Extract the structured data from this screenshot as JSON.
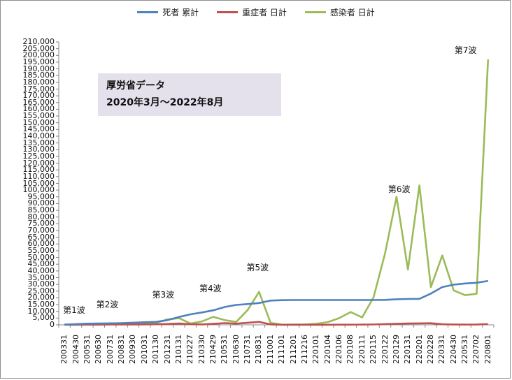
{
  "chart_data": {
    "type": "line",
    "title": "",
    "xlabel": "",
    "ylabel": "",
    "ylim": [
      0,
      210000
    ],
    "yticks": [
      0,
      5000,
      10000,
      15000,
      20000,
      25000,
      30000,
      35000,
      40000,
      45000,
      50000,
      55000,
      60000,
      65000,
      70000,
      75000,
      80000,
      85000,
      90000,
      95000,
      100000,
      105000,
      110000,
      115000,
      120000,
      125000,
      130000,
      135000,
      140000,
      145000,
      150000,
      155000,
      160000,
      165000,
      170000,
      175000,
      180000,
      185000,
      190000,
      195000,
      200000,
      205000,
      210000
    ],
    "ytick_labels": [
      "0",
      "5,000",
      "10,000",
      "15,000",
      "20,000",
      "25,000",
      "30,000",
      "35,000",
      "40,000",
      "45,000",
      "50,000",
      "55,000",
      "60,000",
      "65,000",
      "70,000",
      "75,000",
      "80,000",
      "85,000",
      "90,000",
      "95,000",
      "100,000",
      "105,000",
      "110,000",
      "115,000",
      "120,000",
      "125,000",
      "130,000",
      "135,000",
      "140,000",
      "145,000",
      "150,000",
      "155,000",
      "160,000",
      "165,000",
      "170,000",
      "175,000",
      "180,000",
      "185,000",
      "190,000",
      "195,000",
      "200,000",
      "205,000",
      "210,000"
    ],
    "categories": [
      "200331",
      "200430",
      "200531",
      "200630",
      "200731",
      "200831",
      "200930",
      "201031",
      "201130",
      "201231",
      "210131",
      "210227",
      "210330",
      "210429",
      "210531",
      "210630",
      "210731",
      "210831",
      "211001",
      "211101",
      "211201",
      "211216",
      "220101",
      "220104",
      "220106",
      "220108",
      "220111",
      "220115",
      "220122",
      "220129",
      "220131",
      "220201",
      "220228",
      "220331",
      "220430",
      "220531",
      "220702",
      "220801"
    ],
    "series": [
      {
        "name": "死者 累計",
        "color": "#4f81bd",
        "values": [
          100,
          500,
          900,
          1000,
          1100,
          1300,
          1600,
          1900,
          2200,
          3500,
          5800,
          7800,
          9200,
          10800,
          13200,
          14800,
          15400,
          16200,
          18000,
          18300,
          18400,
          18400,
          18400,
          18400,
          18400,
          18400,
          18400,
          18400,
          18500,
          19000,
          19200,
          19300,
          23200,
          28000,
          29800,
          30700,
          31200,
          32600
        ]
      },
      {
        "name": "重症者 日計",
        "color": "#c0504d",
        "values": [
          0,
          50,
          100,
          100,
          200,
          200,
          200,
          300,
          400,
          600,
          1000,
          400,
          300,
          700,
          1300,
          900,
          1500,
          2200,
          300,
          50,
          50,
          50,
          50,
          50,
          80,
          100,
          150,
          250,
          500,
          800,
          1000,
          1100,
          1200,
          400,
          200,
          150,
          200,
          500
        ]
      },
      {
        "name": "感染者 日計",
        "color": "#9bbb59",
        "values": [
          200,
          300,
          300,
          400,
          1200,
          900,
          400,
          800,
          1500,
          4000,
          5000,
          1000,
          2500,
          5900,
          3500,
          2200,
          11000,
          24500,
          1500,
          100,
          200,
          300,
          800,
          2000,
          5000,
          9500,
          5500,
          20500,
          53000,
          95000,
          41000,
          103500,
          28000,
          51500,
          25500,
          22000,
          23000,
          197000
        ]
      }
    ],
    "legend_position": "top",
    "grid": false,
    "annotations": [
      {
        "label": "第1波",
        "category": "200331"
      },
      {
        "label": "第2波",
        "category": "200731"
      },
      {
        "label": "第3波",
        "category": "201231"
      },
      {
        "label": "第4波",
        "category": "210429"
      },
      {
        "label": "第5波",
        "category": "210831"
      },
      {
        "label": "第6波",
        "category": "220129"
      },
      {
        "label": "第7波",
        "category": "220801"
      }
    ],
    "textbox_lines": [
      "厚労省データ",
      "2020年3月～2022年8月"
    ]
  }
}
